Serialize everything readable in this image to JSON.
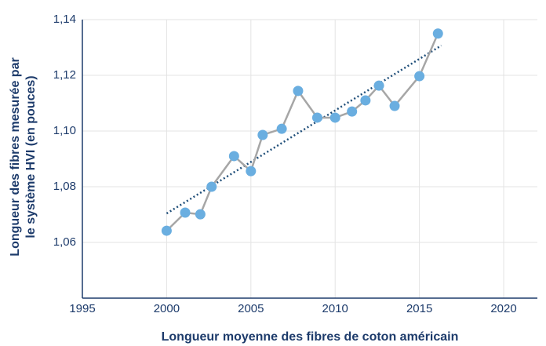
{
  "chart_data": {
    "type": "line",
    "xlabel": "Longueur moyenne des fibres de coton américain",
    "ylabel": [
      "Longueur des fibres mesurée par",
      "le système HVI (en pouces)"
    ],
    "series": [
      {
        "color": "#6aaee0",
        "line_color": "#a6a6a6",
        "x": [
          2000,
          2001.1,
          2002.0,
          2002.67,
          2004.0,
          2005.0,
          2005.7,
          2006.83,
          2007.8,
          2008.94,
          2010.0,
          2011.0,
          2011.8,
          2012.6,
          2013.53,
          2015.0,
          2016.1
        ],
        "values": [
          1.0642,
          1.0707,
          1.0701,
          1.08,
          1.091,
          1.0856,
          1.0986,
          1.1008,
          1.1144,
          1.1048,
          1.1048,
          1.107,
          1.111,
          1.1163,
          1.109,
          1.1197,
          1.135
        ]
      }
    ],
    "trend": {
      "color": "#1f4e79",
      "x": [
        2000,
        2016.3
      ],
      "values": [
        1.0704,
        1.1307
      ]
    },
    "xlim": [
      1995,
      2022
    ],
    "xticks": [
      1995,
      2000,
      2005,
      2010,
      2015,
      2020
    ],
    "ylim": [
      1.04,
      1.14
    ],
    "yticks": [
      {
        "value": 1.06,
        "label": "1,06"
      },
      {
        "value": 1.08,
        "label": "1,08"
      },
      {
        "value": 1.1,
        "label": "1,10"
      },
      {
        "value": 1.12,
        "label": "1,12"
      },
      {
        "value": 1.14,
        "label": "1,14"
      }
    ],
    "grid": true
  }
}
